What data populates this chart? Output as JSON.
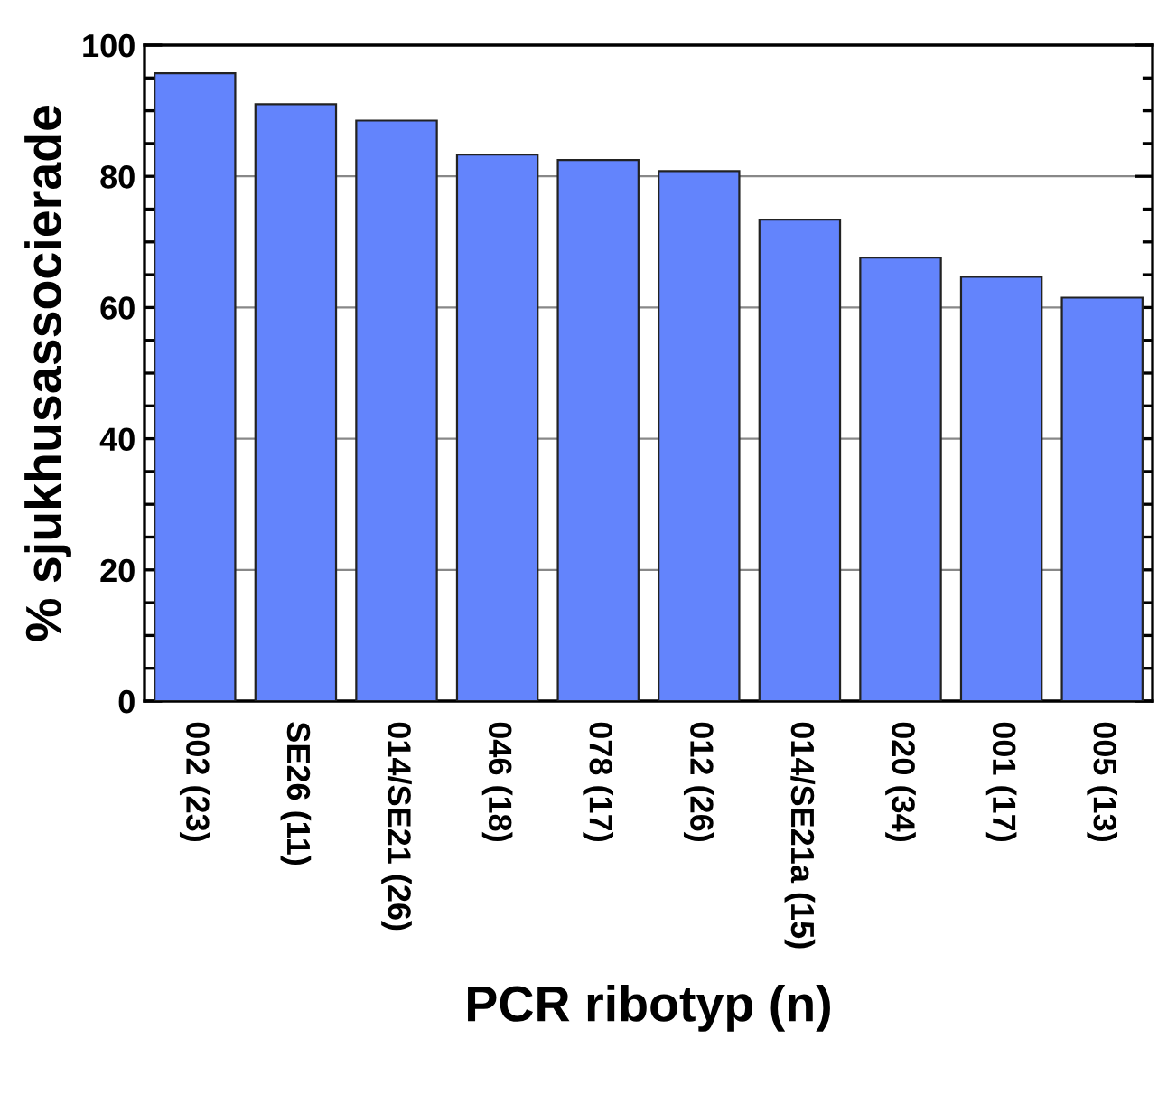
{
  "chart_data": {
    "type": "bar",
    "xlabel": "PCR ribotyp (n)",
    "ylabel": "% sjukhusassocierade",
    "categories": [
      "002 (23)",
      "SE26 (11)",
      "014/SE21 (26)",
      "046 (18)",
      "078 (17)",
      "012 (26)",
      "014/SE21a (15)",
      "020 (34)",
      "001 (17)",
      "005 (13)"
    ],
    "values": [
      95.7,
      91.0,
      88.5,
      83.3,
      82.5,
      80.8,
      73.4,
      67.6,
      64.7,
      61.5
    ],
    "color": "#6384fc",
    "ylim": [
      0,
      100
    ],
    "yticks": [
      0,
      20,
      40,
      60,
      80,
      100
    ],
    "grid": "y"
  }
}
